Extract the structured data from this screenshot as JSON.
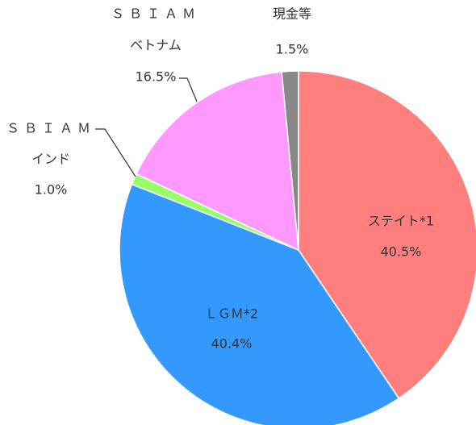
{
  "chart_data": {
    "type": "pie",
    "categories": [
      [
        "ステイト*1"
      ],
      [
        "ＬＧＭ*2"
      ],
      [
        "ＳＢＩＡＭ",
        "インド"
      ],
      [
        "ＳＢＩＡＭ",
        "ベトナム"
      ],
      [
        "現金等"
      ]
    ],
    "values": [
      40.5,
      40.4,
      1.0,
      16.5,
      1.5
    ],
    "value_labels": [
      "40.5%",
      "40.4%",
      "1.0%",
      "16.5%",
      "1.5%"
    ],
    "colors": [
      "#ff7f7f",
      "#3399ff",
      "#99ff66",
      "#ff99ff",
      "#888888"
    ]
  }
}
